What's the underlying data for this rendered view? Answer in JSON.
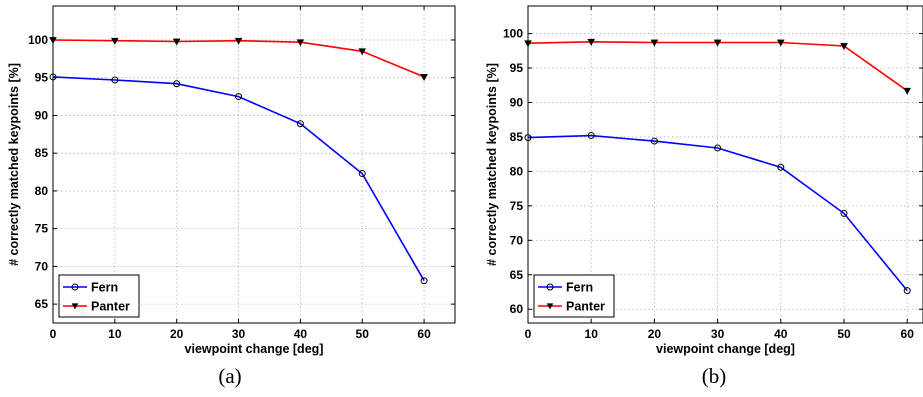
{
  "chart_data": [
    {
      "type": "line",
      "caption": "(a)",
      "xlabel": "viewpoint change [deg]",
      "ylabel": "# correctly matched keypoints [%]",
      "x": [
        0,
        10,
        20,
        30,
        40,
        50,
        60
      ],
      "xlim": [
        0,
        65
      ],
      "ylim": [
        62.5,
        104.5
      ],
      "xticks": [
        0,
        10,
        20,
        30,
        40,
        50,
        60
      ],
      "yticks": [
        65,
        70,
        75,
        80,
        85,
        90,
        95,
        100
      ],
      "grid": true,
      "legend_position": "bottom-left",
      "series": [
        {
          "name": "Fern",
          "color": "#0000ff",
          "marker": "circle",
          "values": [
            95.1,
            94.7,
            94.2,
            92.5,
            88.9,
            82.3,
            68.1
          ]
        },
        {
          "name": "Panter",
          "color": "#ff0000",
          "marker": "down-triangle",
          "values": [
            100.0,
            99.9,
            99.8,
            99.9,
            99.7,
            98.5,
            95.1
          ]
        }
      ]
    },
    {
      "type": "line",
      "caption": "(b)",
      "xlabel": "viewpoint change [deg]",
      "ylabel": "# correctly matched keypoints [%]",
      "x": [
        0,
        10,
        20,
        30,
        40,
        50,
        60
      ],
      "xlim": [
        0,
        62.5
      ],
      "ylim": [
        58,
        104
      ],
      "xticks": [
        0,
        10,
        20,
        30,
        40,
        50,
        60
      ],
      "yticks": [
        60,
        65,
        70,
        75,
        80,
        85,
        90,
        95,
        100
      ],
      "grid": true,
      "legend_position": "bottom-left",
      "series": [
        {
          "name": "Fern",
          "color": "#0000ff",
          "marker": "circle",
          "values": [
            84.9,
            85.2,
            84.4,
            83.4,
            80.6,
            73.9,
            62.7
          ]
        },
        {
          "name": "Panter",
          "color": "#ff0000",
          "marker": "down-triangle",
          "values": [
            98.6,
            98.8,
            98.7,
            98.7,
            98.7,
            98.2,
            91.7
          ]
        }
      ]
    }
  ]
}
